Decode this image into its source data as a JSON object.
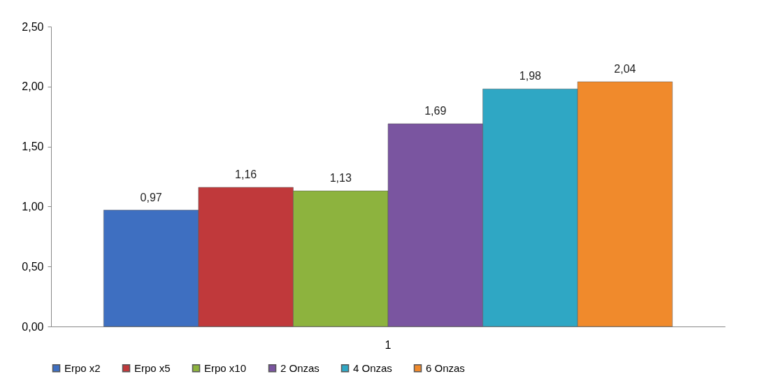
{
  "chart_data": {
    "type": "bar",
    "categories": [
      "1"
    ],
    "series": [
      {
        "name": "Erpo x2",
        "color": "#3e6fc1",
        "values": [
          0.97
        ],
        "value_labels": [
          "0,97"
        ]
      },
      {
        "name": "Erpo x5",
        "color": "#c0393b",
        "values": [
          1.16
        ],
        "value_labels": [
          "1,16"
        ]
      },
      {
        "name": "Erpo x10",
        "color": "#8db33e",
        "values": [
          1.13
        ],
        "value_labels": [
          "1,13"
        ]
      },
      {
        "name": "2 Onzas",
        "color": "#7a55a0",
        "values": [
          1.69
        ],
        "value_labels": [
          "1,69"
        ]
      },
      {
        "name": "4 Onzas",
        "color": "#2fa7c4",
        "values": [
          1.98
        ],
        "value_labels": [
          "1,98"
        ]
      },
      {
        "name": "6 Onzas",
        "color": "#f08a2c",
        "values": [
          2.04
        ],
        "value_labels": [
          "2,04"
        ]
      }
    ],
    "ylim": [
      0,
      2.5
    ],
    "yticks": [
      {
        "value": 0,
        "label": "0,00"
      },
      {
        "value": 0.5,
        "label": "0,50"
      },
      {
        "value": 1,
        "label": "1,00"
      },
      {
        "value": 1.5,
        "label": "1,50"
      },
      {
        "value": 2,
        "label": "2,00"
      },
      {
        "value": 2.5,
        "label": "2,50"
      }
    ],
    "grid": false,
    "legend": "bottom"
  }
}
